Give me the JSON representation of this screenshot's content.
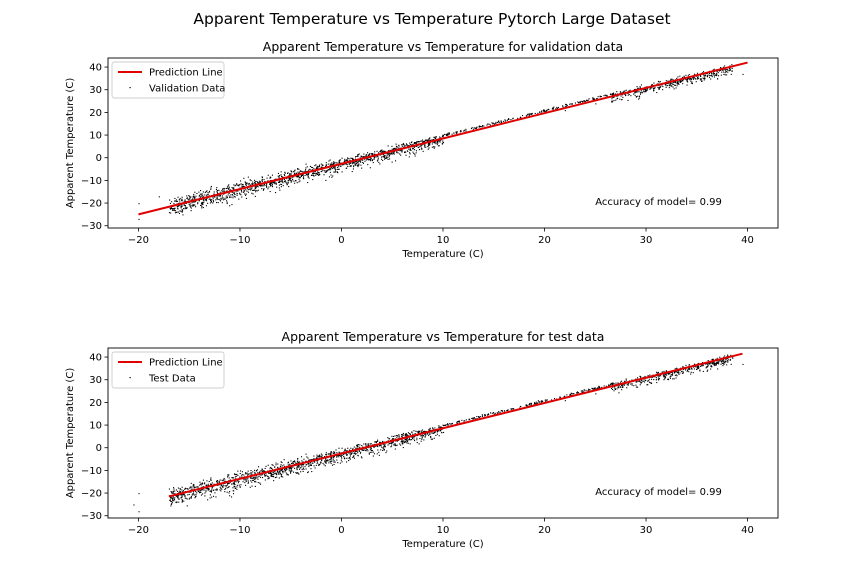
{
  "figure": {
    "suptitle": "Apparent Temperature vs Temperature Pytorch Large Dataset"
  },
  "chart_data": [
    {
      "type": "scatter",
      "title": "Apparent Temperature vs Temperature for validation data",
      "xlabel": "Temperature (C)",
      "ylabel": "Apparent Temperature (C)",
      "xlim": [
        -23.0,
        43.0
      ],
      "ylim": [
        -31.0,
        44.0
      ],
      "xticks": [
        -20,
        -10,
        0,
        10,
        20,
        30,
        40
      ],
      "xtick_labels": [
        "−20",
        "−10",
        "0",
        "10",
        "20",
        "30",
        "40"
      ],
      "yticks": [
        -30,
        -20,
        -10,
        0,
        10,
        20,
        30,
        40
      ],
      "ytick_labels": [
        "−30",
        "−20",
        "−10",
        "0",
        "10",
        "20",
        "30",
        "40"
      ],
      "grid": false,
      "legend_position": "upper-left",
      "series": [
        {
          "name": "Prediction Line",
          "kind": "line",
          "color": "#e00000",
          "x": [
            -20.0,
            40.0
          ],
          "y": [
            -25.0,
            42.0
          ]
        },
        {
          "name": "Validation Data",
          "kind": "scatter",
          "color": "#000000",
          "marker_description": "dense cloud of tiny black points following roughly y = 1.1x - 2, widest spread between -15 and 10 °C, sparse gap between 10 and 25 °C, dense cluster 27–38 °C",
          "x": [
            -20.0,
            -20.0,
            -18.0,
            -17.0,
            -15.0,
            -14.5,
            -13.0,
            -12.0,
            -11.0,
            -10.0,
            -9.0,
            -8.0,
            -7.0,
            -6.0,
            -5.0,
            -4.0,
            -3.0,
            -2.0,
            -1.0,
            0.0,
            0.0,
            1.0,
            2.0,
            3.0,
            4.0,
            5.0,
            6.0,
            7.0,
            8.0,
            9.0,
            10.0,
            10.0,
            12.0,
            15.0,
            18.0,
            20.0,
            22.0,
            25.0,
            27.0,
            28.0,
            29.0,
            30.0,
            31.0,
            32.0,
            33.0,
            34.0,
            35.0,
            36.0,
            37.0,
            38.0,
            39.5
          ],
          "y": [
            -27.0,
            -20.0,
            -17.0,
            -24.0,
            -21.0,
            -15.0,
            -18.0,
            -15.0,
            -14.0,
            -10.0,
            -14.0,
            -11.0,
            -10.0,
            -6.0,
            -10.0,
            -8.0,
            -4.0,
            -5.0,
            -2.0,
            0.0,
            -6.0,
            -2.0,
            0.0,
            -1.0,
            3.0,
            3.0,
            6.0,
            5.0,
            7.0,
            8.0,
            10.0,
            7.0,
            12.0,
            15.0,
            18.0,
            20.0,
            21.0,
            24.0,
            28.0,
            30.0,
            27.0,
            31.0,
            29.0,
            33.0,
            32.0,
            34.0,
            35.0,
            36.0,
            35.0,
            38.0,
            37.0
          ]
        }
      ],
      "annotations": [
        {
          "text": "Accuracy of model= 0.99",
          "x": 25.0,
          "y": -19.0
        }
      ]
    },
    {
      "type": "scatter",
      "title": "Apparent Temperature vs Temperature for test data",
      "xlabel": "Temperature (C)",
      "ylabel": "Apparent Temperature (C)",
      "xlim": [
        -23.0,
        43.0
      ],
      "ylim": [
        -31.0,
        44.0
      ],
      "xticks": [
        -20,
        -10,
        0,
        10,
        20,
        30,
        40
      ],
      "xtick_labels": [
        "−20",
        "−10",
        "0",
        "10",
        "20",
        "30",
        "40"
      ],
      "yticks": [
        -30,
        -20,
        -10,
        0,
        10,
        20,
        30,
        40
      ],
      "ytick_labels": [
        "−30",
        "−20",
        "−10",
        "0",
        "10",
        "20",
        "30",
        "40"
      ],
      "grid": false,
      "legend_position": "upper-left",
      "series": [
        {
          "name": "Prediction Line",
          "kind": "line",
          "color": "#e00000",
          "x": [
            -17.0,
            39.5
          ],
          "y": [
            -21.5,
            41.5
          ]
        },
        {
          "name": "Test Data",
          "kind": "scatter",
          "color": "#000000",
          "marker_description": "dense cloud of tiny black points following roughly y = 1.1x - 2, widest spread between -15 and 10 °C, sparse gap between 10 and 25 °C, dense cluster 27–38 °C",
          "x": [
            -20.5,
            -20.0,
            -20.0,
            -17.0,
            -15.0,
            -14.0,
            -13.0,
            -12.0,
            -11.0,
            -10.0,
            -9.0,
            -8.0,
            -7.0,
            -6.0,
            -5.0,
            -4.0,
            -3.0,
            -2.0,
            -1.0,
            0.0,
            0.0,
            1.0,
            2.0,
            3.0,
            4.0,
            5.0,
            6.0,
            7.0,
            8.0,
            9.0,
            10.0,
            10.0,
            12.0,
            15.0,
            18.0,
            20.0,
            22.0,
            25.0,
            27.0,
            28.0,
            29.0,
            30.0,
            31.0,
            32.0,
            33.0,
            34.0,
            35.0,
            36.0,
            37.0,
            38.0,
            39.5
          ],
          "y": [
            -25.0,
            -28.0,
            -20.0,
            -18.0,
            -22.0,
            -15.0,
            -19.0,
            -14.0,
            -15.0,
            -10.0,
            -13.0,
            -10.0,
            -11.0,
            -6.0,
            -9.0,
            -7.0,
            -5.0,
            -5.0,
            -2.0,
            0.0,
            -6.0,
            -2.0,
            0.0,
            -1.0,
            3.0,
            3.0,
            6.0,
            5.0,
            7.0,
            8.0,
            10.0,
            7.0,
            12.0,
            15.0,
            18.0,
            20.0,
            21.0,
            24.0,
            28.0,
            30.0,
            27.0,
            31.0,
            29.0,
            33.0,
            32.0,
            34.0,
            35.0,
            36.0,
            35.0,
            38.0,
            37.0
          ]
        }
      ],
      "annotations": [
        {
          "text": "Accuracy of model= 0.99",
          "x": 25.0,
          "y": -19.0
        }
      ]
    }
  ]
}
